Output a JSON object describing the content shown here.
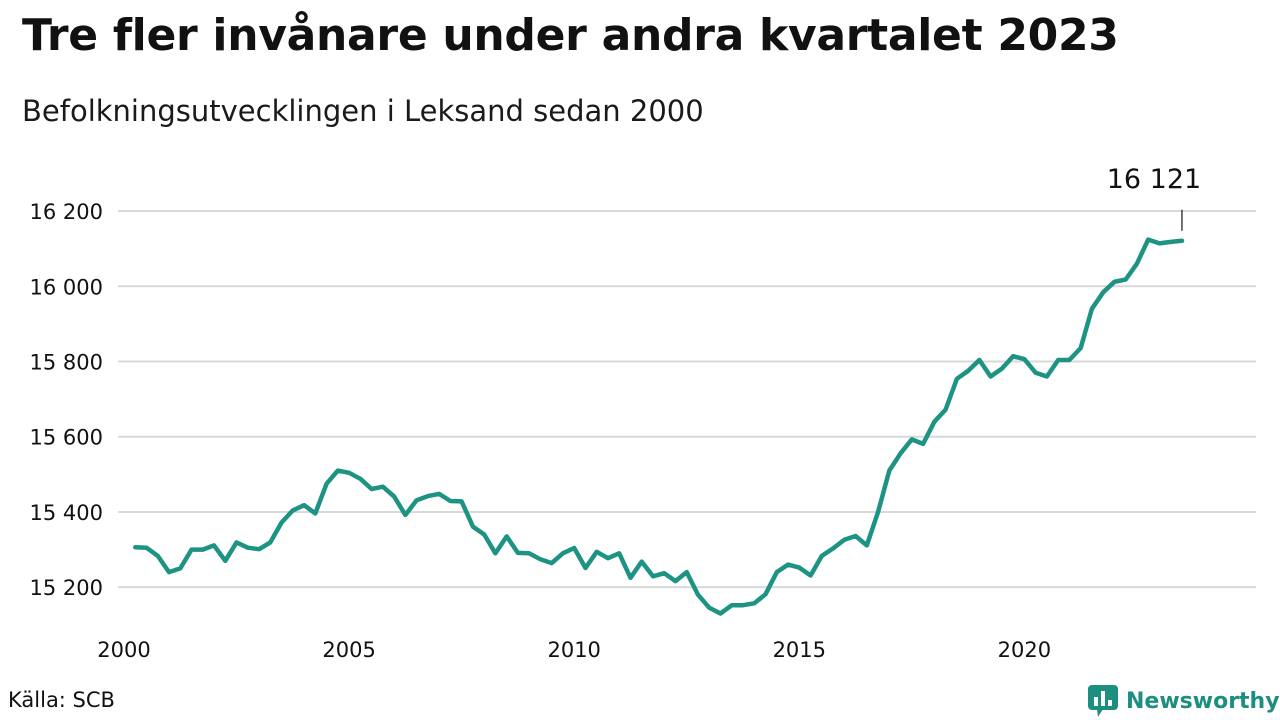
{
  "header": {
    "title": "Tre fler invånare under andra kvartalet 2023",
    "subtitle": "Befolkningsutvecklingen i Leksand sedan 2000"
  },
  "footer": {
    "source": "Källa: SCB",
    "brand_name": "Newsworthy",
    "brand_icon": "bar-chart-bubble-icon"
  },
  "colors": {
    "line": "#1d9384",
    "grid": "#d9d9d9",
    "brand": "#1d8f80",
    "text": "#111111"
  },
  "chart_data": {
    "type": "line",
    "title": "Tre fler invånare under andra kvartalet 2023",
    "subtitle": "Befolkningsutvecklingen i Leksand sedan 2000",
    "xlabel": "",
    "ylabel": "",
    "x_ticks": [
      2000,
      2005,
      2010,
      2015,
      2020
    ],
    "x_tick_labels": [
      "2000",
      "2005",
      "2010",
      "2015",
      "2020"
    ],
    "y_ticks": [
      15200,
      15400,
      15600,
      15800,
      16000,
      16200
    ],
    "y_tick_labels": [
      "15 200",
      "15 400",
      "15 600",
      "15 800",
      "16 000",
      "16 200"
    ],
    "xlim": [
      2000,
      2025.1
    ],
    "ylim": [
      15118,
      16256
    ],
    "grid": "horizontal",
    "legend": "none",
    "annotation": {
      "x": 2023.5,
      "y": 16121,
      "label": "16 121"
    },
    "series": [
      {
        "values": [
          [
            2000.25,
            15306
          ],
          [
            2000.5,
            15305
          ],
          [
            2000.75,
            15283
          ],
          [
            2001.0,
            15240
          ],
          [
            2001.25,
            15250
          ],
          [
            2001.5,
            15300
          ],
          [
            2001.75,
            15300
          ],
          [
            2002.0,
            15311
          ],
          [
            2002.25,
            15270
          ],
          [
            2002.5,
            15319
          ],
          [
            2002.75,
            15305
          ],
          [
            2003.0,
            15301
          ],
          [
            2003.25,
            15319
          ],
          [
            2003.5,
            15372
          ],
          [
            2003.75,
            15404
          ],
          [
            2004.0,
            15418
          ],
          [
            2004.25,
            15396
          ],
          [
            2004.5,
            15475
          ],
          [
            2004.75,
            15510
          ],
          [
            2005.0,
            15504
          ],
          [
            2005.25,
            15488
          ],
          [
            2005.5,
            15461
          ],
          [
            2005.75,
            15467
          ],
          [
            2006.0,
            15441
          ],
          [
            2006.25,
            15392
          ],
          [
            2006.5,
            15431
          ],
          [
            2006.75,
            15442
          ],
          [
            2007.0,
            15448
          ],
          [
            2007.25,
            15429
          ],
          [
            2007.5,
            15428
          ],
          [
            2007.75,
            15361
          ],
          [
            2008.0,
            15340
          ],
          [
            2008.25,
            15290
          ],
          [
            2008.5,
            15335
          ],
          [
            2008.75,
            15291
          ],
          [
            2009.0,
            15290
          ],
          [
            2009.25,
            15274
          ],
          [
            2009.5,
            15264
          ],
          [
            2009.75,
            15290
          ],
          [
            2010.0,
            15304
          ],
          [
            2010.25,
            15251
          ],
          [
            2010.5,
            15294
          ],
          [
            2010.75,
            15277
          ],
          [
            2011.0,
            15290
          ],
          [
            2011.25,
            15225
          ],
          [
            2011.5,
            15268
          ],
          [
            2011.75,
            15229
          ],
          [
            2012.0,
            15237
          ],
          [
            2012.25,
            15216
          ],
          [
            2012.5,
            15240
          ],
          [
            2012.75,
            15180
          ],
          [
            2013.0,
            15145
          ],
          [
            2013.25,
            15130
          ],
          [
            2013.5,
            15152
          ],
          [
            2013.75,
            15152
          ],
          [
            2014.0,
            15157
          ],
          [
            2014.25,
            15181
          ],
          [
            2014.5,
            15240
          ],
          [
            2014.75,
            15260
          ],
          [
            2015.0,
            15252
          ],
          [
            2015.25,
            15231
          ],
          [
            2015.5,
            15283
          ],
          [
            2015.75,
            15303
          ],
          [
            2016.0,
            15326
          ],
          [
            2016.25,
            15336
          ],
          [
            2016.5,
            15311
          ],
          [
            2016.75,
            15400
          ],
          [
            2017.0,
            15510
          ],
          [
            2017.25,
            15556
          ],
          [
            2017.5,
            15593
          ],
          [
            2017.75,
            15581
          ],
          [
            2018.0,
            15640
          ],
          [
            2018.25,
            15672
          ],
          [
            2018.5,
            15754
          ],
          [
            2018.75,
            15775
          ],
          [
            2019.0,
            15804
          ],
          [
            2019.25,
            15760
          ],
          [
            2019.5,
            15781
          ],
          [
            2019.75,
            15814
          ],
          [
            2020.0,
            15806
          ],
          [
            2020.25,
            15770
          ],
          [
            2020.5,
            15760
          ],
          [
            2020.75,
            15804
          ],
          [
            2021.0,
            15804
          ],
          [
            2021.25,
            15836
          ],
          [
            2021.5,
            15940
          ],
          [
            2021.75,
            15984
          ],
          [
            2022.0,
            16012
          ],
          [
            2022.25,
            16018
          ],
          [
            2022.5,
            16060
          ],
          [
            2022.75,
            16124
          ],
          [
            2023.0,
            16114
          ],
          [
            2023.25,
            16118
          ],
          [
            2023.5,
            16121
          ]
        ]
      }
    ]
  }
}
